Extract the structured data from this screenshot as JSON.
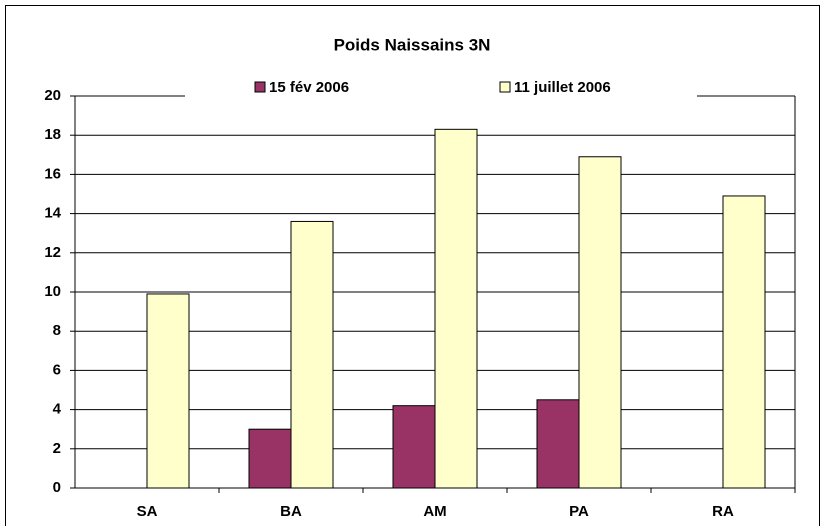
{
  "chart_data": {
    "type": "bar",
    "title": "Poids Naissains 3N",
    "categories": [
      "SA",
      "BA",
      "AM",
      "PA",
      "RA"
    ],
    "series": [
      {
        "name": "15 fév 2006",
        "color": "#993366",
        "values": [
          null,
          3.0,
          4.2,
          4.5,
          null
        ]
      },
      {
        "name": "11 juillet 2006",
        "color": "#ffffcc",
        "values": [
          9.9,
          13.6,
          18.3,
          16.9,
          14.9
        ]
      }
    ],
    "ylim": [
      0,
      20
    ],
    "yticks": [
      0,
      2,
      4,
      6,
      8,
      10,
      12,
      14,
      16,
      18,
      20
    ],
    "grid": true
  }
}
